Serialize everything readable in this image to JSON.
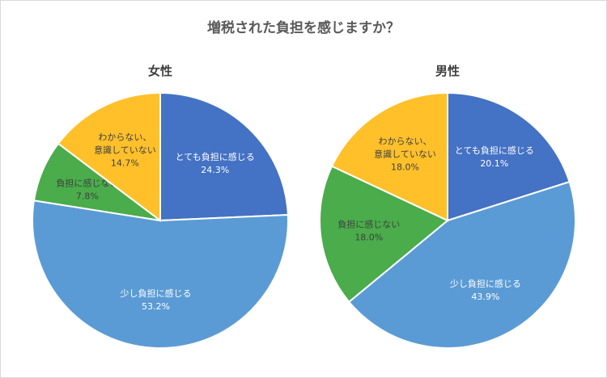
{
  "chart_data": {
    "title": "増税された負担を感じますか？",
    "charts": [
      {
        "type": "pie",
        "subtitle": "女性",
        "slices": [
          {
            "label": "とても負担に感じる",
            "value": 24.3,
            "value_label": "24.3%",
            "color": "#4472c4",
            "text_color": "#ffffff"
          },
          {
            "label": "少し負担に感じる",
            "value": 53.2,
            "value_label": "53.2%",
            "color": "#5b9bd5",
            "text_color": "#ffffff"
          },
          {
            "label": "負担に感じない",
            "value": 7.8,
            "value_label": "7.8%",
            "color": "#4aac4b",
            "text_color": "#404040"
          },
          {
            "label": "わからない、意識していない",
            "line1": "わからない、",
            "line2": "意識していない",
            "value": 14.7,
            "value_label": "14.7%",
            "color": "#ffc02a",
            "text_color": "#404040"
          }
        ]
      },
      {
        "type": "pie",
        "subtitle": "男性",
        "slices": [
          {
            "label": "とても負担に感じる",
            "value": 20.1,
            "value_label": "20.1%",
            "color": "#4472c4",
            "text_color": "#ffffff"
          },
          {
            "label": "少し負担に感じる",
            "value": 43.9,
            "value_label": "43.9%",
            "color": "#5b9bd5",
            "text_color": "#ffffff"
          },
          {
            "label": "負担に感じない",
            "value": 18.0,
            "value_label": "18.0%",
            "color": "#4aac4b",
            "text_color": "#404040"
          },
          {
            "label": "わからない、意識していない",
            "line1": "わからない、",
            "line2": "意識していない",
            "value": 18.0,
            "value_label": "18.0%",
            "color": "#ffc02a",
            "text_color": "#404040"
          }
        ]
      }
    ]
  }
}
